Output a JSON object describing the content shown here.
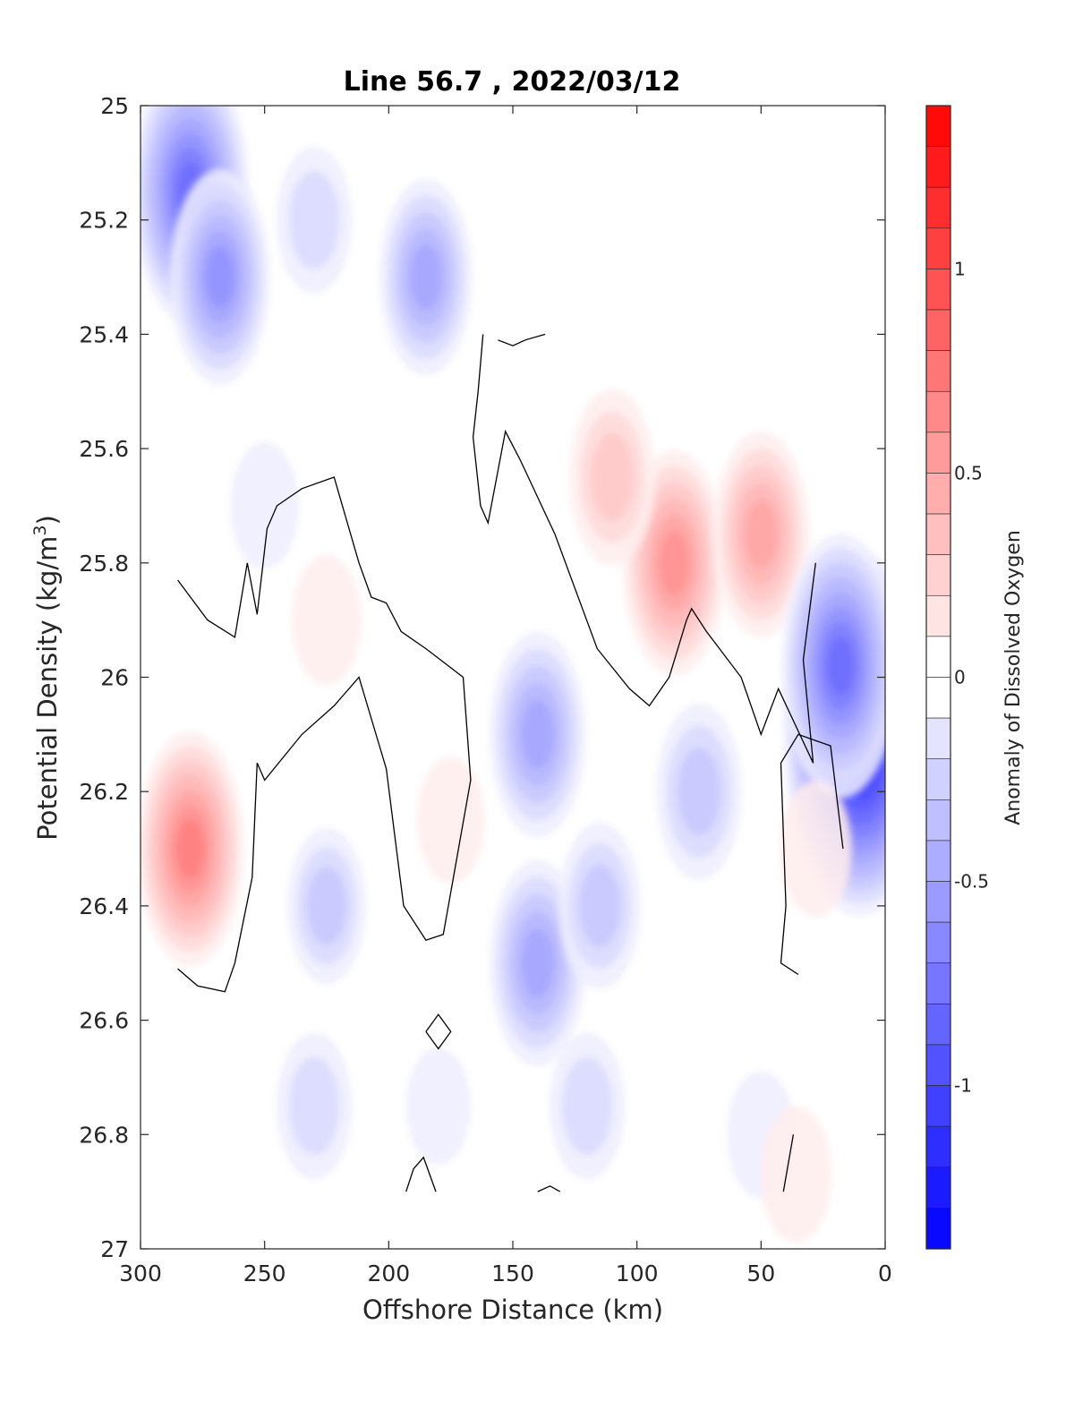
{
  "chart_data": {
    "type": "heatmap",
    "title": "Line 56.7 , 2022/03/12",
    "xlabel": "Offshore Distance (km)",
    "ylabel_main": "Potential Density (kg/m",
    "ylabel_sup": "3",
    "ylabel_close": ")",
    "xlim": [
      300,
      0
    ],
    "ylim": [
      25,
      27
    ],
    "x_reversed": true,
    "y_reversed": true,
    "xticks": [
      300,
      250,
      200,
      150,
      100,
      50,
      0
    ],
    "xtick_labels": [
      "300",
      "250",
      "200",
      "150",
      "100",
      "50",
      "0"
    ],
    "yticks": [
      25,
      25.2,
      25.4,
      25.6,
      25.8,
      26,
      26.2,
      26.4,
      26.6,
      26.8,
      27
    ],
    "ytick_labels": [
      "25",
      "25.2",
      "25.4",
      "25.6",
      "25.8",
      "26",
      "26.2",
      "26.4",
      "26.6",
      "26.8",
      "27"
    ],
    "colorbar": {
      "label": "Anomaly of Dissolved Oxygen",
      "range": [
        -1.4,
        1.4
      ],
      "step": 0.1,
      "ticks": [
        1,
        0.5,
        0,
        -0.5,
        -1
      ],
      "tick_labels": [
        "1",
        "0.5",
        "0",
        "-0.5",
        "-1"
      ],
      "color_negative": "#0000ff",
      "color_positive": "#ff0000",
      "color_zero": "#ffffff"
    },
    "anomaly_features": [
      {
        "x": 280,
        "y": 25.15,
        "value": -0.8
      },
      {
        "x": 268,
        "y": 25.3,
        "value": -0.55
      },
      {
        "x": 230,
        "y": 25.2,
        "value": -0.2
      },
      {
        "x": 185,
        "y": 25.3,
        "value": -0.45
      },
      {
        "x": 250,
        "y": 25.7,
        "value": -0.1
      },
      {
        "x": 280,
        "y": 26.3,
        "value": 0.65
      },
      {
        "x": 225,
        "y": 25.9,
        "value": 0.12
      },
      {
        "x": 175,
        "y": 26.25,
        "value": 0.1
      },
      {
        "x": 225,
        "y": 26.4,
        "value": -0.25
      },
      {
        "x": 140,
        "y": 26.1,
        "value": -0.5
      },
      {
        "x": 140,
        "y": 26.5,
        "value": -0.5
      },
      {
        "x": 115,
        "y": 26.4,
        "value": -0.3
      },
      {
        "x": 75,
        "y": 26.2,
        "value": -0.35
      },
      {
        "x": 85,
        "y": 25.8,
        "value": 0.6
      },
      {
        "x": 50,
        "y": 25.75,
        "value": 0.5
      },
      {
        "x": 110,
        "y": 25.65,
        "value": 0.35
      },
      {
        "x": 10,
        "y": 26.1,
        "value": -1.3
      },
      {
        "x": 18,
        "y": 25.98,
        "value": -0.8
      },
      {
        "x": 28,
        "y": 26.3,
        "value": 0.15
      },
      {
        "x": 180,
        "y": 26.75,
        "value": -0.05
      },
      {
        "x": 120,
        "y": 26.75,
        "value": -0.2
      },
      {
        "x": 230,
        "y": 26.75,
        "value": -0.2
      },
      {
        "x": 50,
        "y": 26.8,
        "value": -0.1
      },
      {
        "x": 36,
        "y": 26.87,
        "value": 0.15
      }
    ],
    "zero_contours": [
      [
        [
          285,
          25.83
        ],
        [
          273,
          25.9
        ],
        [
          262,
          25.93
        ],
        [
          257,
          25.8
        ],
        [
          253,
          25.89
        ],
        [
          249,
          25.74
        ],
        [
          245,
          25.7
        ],
        [
          235,
          25.67
        ],
        [
          222,
          25.65
        ],
        [
          212,
          25.8
        ],
        [
          207,
          25.86
        ],
        [
          201,
          25.87
        ],
        [
          195,
          25.92
        ],
        [
          185,
          25.95
        ],
        [
          170,
          26.0
        ],
        [
          167,
          26.18
        ],
        [
          178,
          26.45
        ],
        [
          185,
          26.46
        ],
        [
          194,
          26.4
        ],
        [
          201,
          26.16
        ],
        [
          212,
          26.0
        ],
        [
          222,
          26.05
        ],
        [
          235,
          26.1
        ],
        [
          250,
          26.18
        ],
        [
          253,
          26.15
        ],
        [
          255,
          26.35
        ],
        [
          262,
          26.5
        ],
        [
          266,
          26.55
        ],
        [
          277,
          26.54
        ],
        [
          285,
          26.51
        ]
      ],
      [
        [
          162,
          25.4
        ],
        [
          164,
          25.5
        ],
        [
          166,
          25.58
        ],
        [
          163,
          25.7
        ],
        [
          160,
          25.73
        ],
        [
          153,
          25.57
        ],
        [
          147,
          25.62
        ],
        [
          133,
          25.75
        ],
        [
          116,
          25.95
        ],
        [
          103,
          26.02
        ],
        [
          95,
          26.05
        ],
        [
          87,
          26.0
        ],
        [
          80,
          25.9
        ],
        [
          78,
          25.88
        ],
        [
          72,
          25.92
        ],
        [
          58,
          26.0
        ],
        [
          50,
          26.1
        ],
        [
          43,
          26.02
        ],
        [
          29,
          26.15
        ],
        [
          33,
          25.97
        ],
        [
          28,
          25.8
        ]
      ],
      [
        [
          156,
          25.41
        ],
        [
          150,
          25.42
        ],
        [
          145,
          25.41
        ],
        [
          137,
          25.4
        ]
      ],
      [
        [
          35,
          26.52
        ],
        [
          42,
          26.5
        ],
        [
          40,
          26.4
        ],
        [
          42,
          26.15
        ],
        [
          35,
          26.1
        ],
        [
          22,
          26.12
        ],
        [
          17,
          26.3
        ]
      ],
      [
        [
          193,
          26.9
        ],
        [
          190,
          26.86
        ],
        [
          186,
          26.84
        ],
        [
          181,
          26.9
        ]
      ],
      [
        [
          185,
          26.62
        ],
        [
          180,
          26.59
        ],
        [
          175,
          26.62
        ],
        [
          180,
          26.65
        ],
        [
          185,
          26.62
        ]
      ],
      [
        [
          140,
          26.9
        ],
        [
          135,
          26.89
        ],
        [
          131,
          26.9
        ]
      ],
      [
        [
          41,
          26.9
        ],
        [
          37,
          26.8
        ]
      ]
    ]
  }
}
